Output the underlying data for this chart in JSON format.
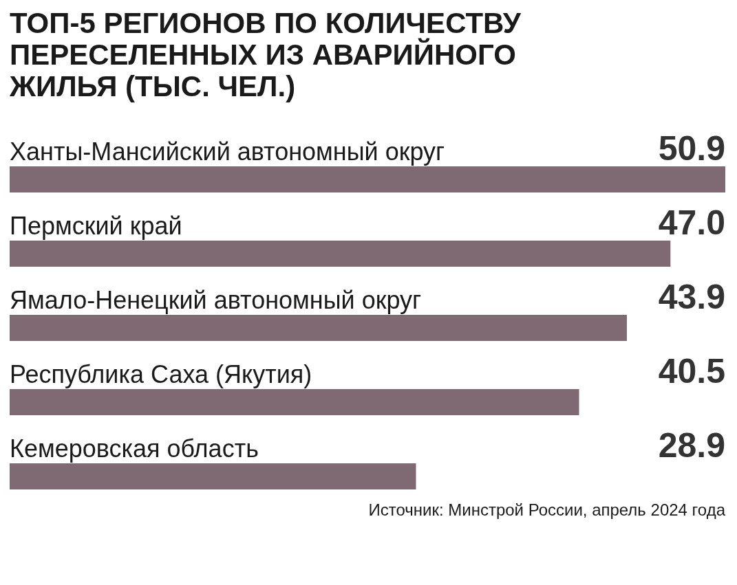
{
  "chart_data": {
    "type": "bar",
    "orientation": "horizontal",
    "title": "ТОП-5 РЕГИОНОВ ПО КОЛИЧЕСТВУ\nПЕРЕСЕЛЕННЫХ ИЗ АВАРИЙНОГО\nЖИЛЬЯ (ТЫС. ЧЕЛ.)",
    "categories": [
      "Ханты-Мансийский автономный округ",
      "Пермский край",
      "Ямало-Ненецкий автономный округ",
      "Республика Саха (Якутия)",
      "Кемеровская область"
    ],
    "values": [
      50.9,
      47.0,
      43.9,
      40.5,
      28.9
    ],
    "value_labels": [
      "50.9",
      "47.0",
      "43.9",
      "40.5",
      "28.9"
    ],
    "color": "#7f6a73",
    "annotations": [
      "Источник: Минстрой России, апрель 2024 года"
    ],
    "grid": false
  }
}
